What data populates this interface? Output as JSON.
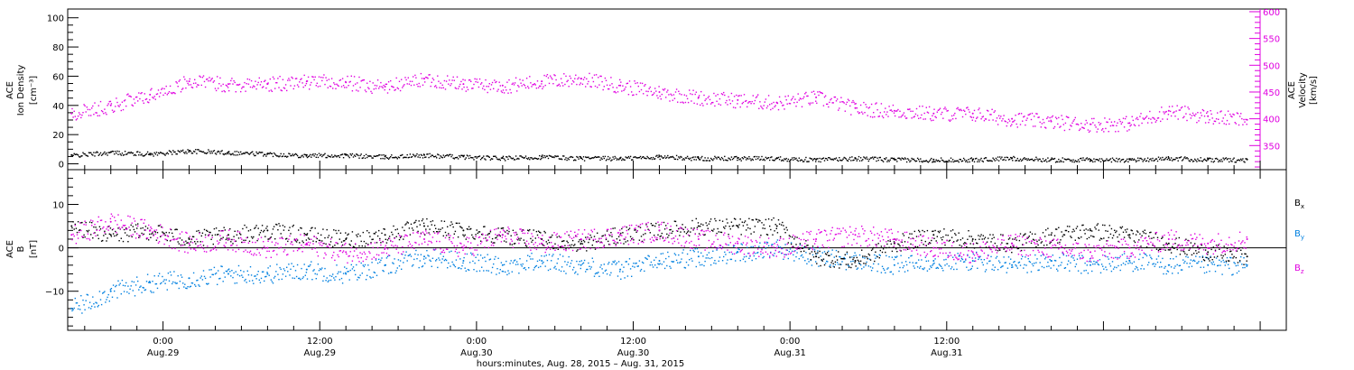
{
  "colors": {
    "density": "#000000",
    "velocity": "#e000e0",
    "bx": "#000000",
    "by": "#0080e0",
    "bz": "#e000e0",
    "frame": "#000000"
  },
  "top_panel": {
    "ylabel_lines": [
      "ACE",
      "Ion Density",
      "[cm⁻³]"
    ],
    "right_ylabel_lines": [
      "ACE",
      "Velocity",
      "[km/s]"
    ],
    "left_ticks": [
      "0",
      "20",
      "40",
      "60",
      "80",
      "100"
    ],
    "right_ticks": [
      "350",
      "400",
      "450",
      "500",
      "550",
      "600"
    ]
  },
  "bottom_panel": {
    "ylabel_lines": [
      "ACE",
      "B",
      "[nT]"
    ],
    "left_ticks": [
      "−10",
      "0",
      "10"
    ],
    "legend": [
      {
        "label": "B",
        "sub": "x",
        "color": "#000000"
      },
      {
        "label": "B",
        "sub": "y",
        "color": "#0080e0"
      },
      {
        "label": "B",
        "sub": "z",
        "color": "#e000e0"
      }
    ]
  },
  "x_axis": {
    "ticks": [
      {
        "time": "0:00",
        "date": "Aug.29"
      },
      {
        "time": "12:00",
        "date": "Aug.29"
      },
      {
        "time": "0:00",
        "date": "Aug.30"
      },
      {
        "time": "12:00",
        "date": "Aug.30"
      },
      {
        "time": "0:00",
        "date": "Aug.31"
      },
      {
        "time": "12:00",
        "date": "Aug.31"
      }
    ],
    "title": "hours:minutes, Aug. 28, 2015 – Aug. 31, 2015"
  },
  "chart_data": [
    {
      "type": "scatter",
      "x_unit": "hours since 2015-08-28 00:00 UT",
      "xlim": [
        16.7,
        110
      ],
      "ylim": [
        -4,
        106
      ],
      "y2lim": [
        305,
        605
      ],
      "series": [
        {
          "name": "Ion Density",
          "axis": "left",
          "x": [
            17,
            20,
            23,
            26,
            29,
            32,
            35,
            38,
            41,
            44,
            47,
            50,
            53,
            56,
            59,
            62,
            65,
            68,
            71,
            74,
            77,
            80,
            83,
            86,
            89,
            92,
            95,
            98,
            101,
            104,
            107
          ],
          "y": [
            6,
            8,
            7,
            9,
            8,
            7,
            6,
            6,
            5,
            6,
            5,
            4,
            5,
            4,
            4,
            5,
            4,
            4,
            4,
            3,
            4,
            3,
            3,
            3,
            4,
            3,
            3,
            3,
            4,
            3,
            3
          ]
        },
        {
          "name": "Velocity",
          "axis": "right",
          "x": [
            17,
            20,
            23,
            26,
            29,
            32,
            35,
            38,
            41,
            44,
            47,
            50,
            53,
            56,
            59,
            62,
            65,
            68,
            71,
            74,
            77,
            80,
            83,
            86,
            89,
            92,
            95,
            98,
            101,
            104,
            107
          ],
          "y": [
            410,
            425,
            445,
            470,
            465,
            465,
            470,
            468,
            460,
            475,
            465,
            462,
            470,
            475,
            462,
            450,
            440,
            435,
            430,
            440,
            420,
            415,
            410,
            410,
            400,
            395,
            390,
            392,
            415,
            405,
            398
          ]
        }
      ]
    },
    {
      "type": "scatter",
      "x_unit": "hours since 2015-08-28 00:00 UT",
      "xlim": [
        16.7,
        110
      ],
      "ylim": [
        -19,
        18
      ],
      "series": [
        {
          "name": "Bx",
          "x": [
            17,
            20,
            23,
            26,
            29,
            32,
            35,
            38,
            41,
            44,
            47,
            50,
            53,
            56,
            59,
            62,
            65,
            68,
            71,
            74,
            77,
            80,
            83,
            86,
            89,
            92,
            95,
            98,
            101,
            104,
            107
          ],
          "y": [
            5,
            3,
            4,
            2,
            3,
            4,
            3,
            2,
            3,
            5,
            4,
            3,
            2,
            1,
            3,
            4,
            5,
            5,
            5,
            -2,
            -3,
            1,
            3,
            2,
            1,
            3,
            4,
            3,
            1,
            -1,
            -2
          ]
        },
        {
          "name": "By",
          "x": [
            17,
            20,
            23,
            26,
            29,
            32,
            35,
            38,
            41,
            44,
            47,
            50,
            53,
            56,
            59,
            62,
            65,
            68,
            71,
            74,
            77,
            80,
            83,
            86,
            89,
            92,
            95,
            98,
            101,
            104,
            107
          ],
          "y": [
            -14,
            -10,
            -8,
            -7,
            -6,
            -6,
            -5,
            -6,
            -4,
            -2,
            -3,
            -4,
            -3,
            -4,
            -5,
            -3,
            -2,
            -1,
            0,
            -2,
            -3,
            -4,
            -3,
            -3,
            -4,
            -3,
            -4,
            -3,
            -4,
            -4,
            -4
          ]
        },
        {
          "name": "Bz",
          "x": [
            17,
            20,
            23,
            26,
            29,
            32,
            35,
            38,
            41,
            44,
            47,
            50,
            53,
            56,
            59,
            62,
            65,
            68,
            71,
            74,
            77,
            80,
            83,
            86,
            89,
            92,
            95,
            98,
            101,
            104,
            107
          ],
          "y": [
            3,
            6,
            4,
            1,
            2,
            0,
            1,
            -1,
            0,
            2,
            0,
            3,
            1,
            2,
            3,
            4,
            2,
            1,
            0,
            2,
            3,
            2,
            0,
            -1,
            1,
            0,
            -1,
            0,
            2,
            1,
            2
          ]
        }
      ]
    }
  ]
}
